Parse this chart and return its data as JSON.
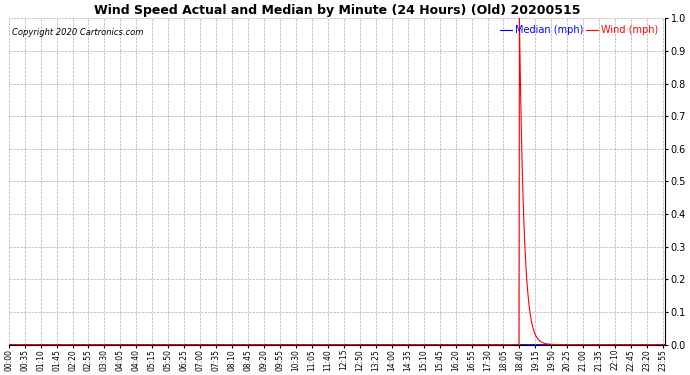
{
  "title": "Wind Speed Actual and Median by Minute (24 Hours) (Old) 20200515",
  "copyright": "Copyright 2020 Cartronics.com",
  "legend_median": "Median (mph)",
  "legend_wind": "Wind (mph)",
  "median_color": "blue",
  "wind_color": "red",
  "background_color": "white",
  "grid_color": "#aaaaaa",
  "ylim": [
    0.0,
    1.0
  ],
  "yticks": [
    0.0,
    0.1,
    0.2,
    0.3,
    0.4,
    0.5,
    0.6,
    0.7,
    0.8,
    0.9,
    1.0
  ],
  "tick_interval_minutes": 35,
  "total_minutes": 1440,
  "spike_minute": 1120,
  "spike_peak_value": 1.0,
  "spike_decay_minutes": 40,
  "wind_post_spike_value": 0.0,
  "median_value": 0.0,
  "figwidth": 6.9,
  "figheight": 3.75,
  "dpi": 100
}
